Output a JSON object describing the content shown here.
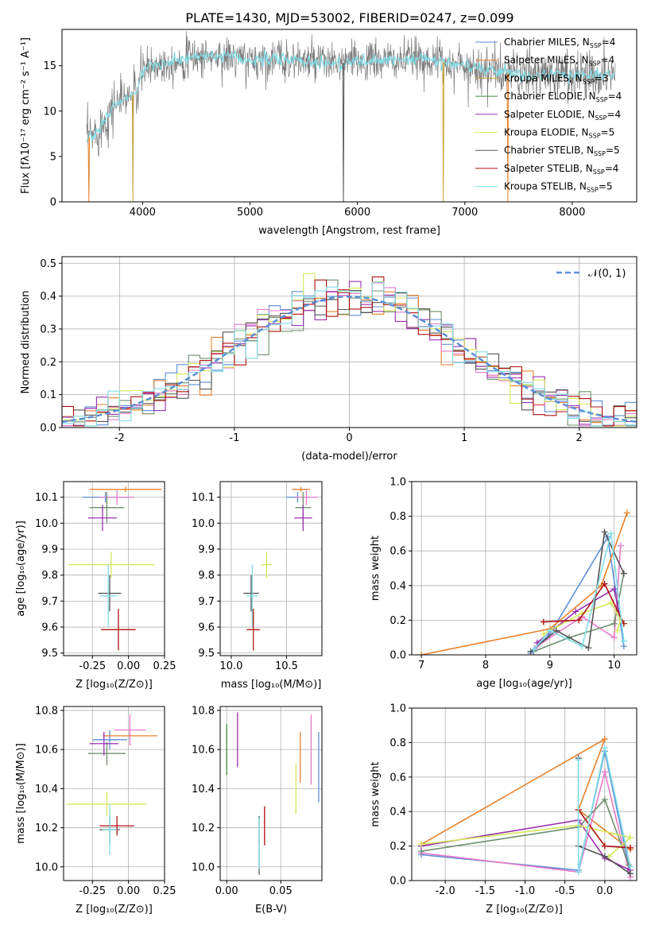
{
  "figure_title": "PLATE=1430, MJD=53002, FIBERID=0247, z=0.099",
  "legend_entries": [
    {
      "label": "Chabrier MILES, N",
      "sub": "SSP",
      "suffix": "=4",
      "color": "#5b8fd6"
    },
    {
      "label": "Salpeter MILES, N",
      "sub": "SSP",
      "suffix": "=4",
      "color": "#e8802b"
    },
    {
      "label": "Kroupa MILES, N",
      "sub": "SSP",
      "suffix": "=3",
      "color": "#c8a23a"
    },
    {
      "label": "Chabrier ELODIE, N",
      "sub": "SSP",
      "suffix": "=4",
      "color": "#3d8a3d"
    },
    {
      "label": "Salpeter ELODIE, N",
      "sub": "SSP",
      "suffix": "=4",
      "color": "#9b30b0"
    },
    {
      "label": "Kroupa ELODIE, N",
      "sub": "SSP",
      "suffix": "=5",
      "color": "#d4e85a"
    },
    {
      "label": "Chabrier STELIB, N",
      "sub": "SSP",
      "suffix": "=5",
      "color": "#555555"
    },
    {
      "label": "Salpeter STELIB, N",
      "sub": "SSP",
      "suffix": "=4",
      "color": "#b01010"
    },
    {
      "label": "Kroupa STELIB, N",
      "sub": "SSP",
      "suffix": "=5",
      "color": "#7fdde8"
    }
  ],
  "colors": [
    "#5b8fd6",
    "#e8802b",
    "#e879c8",
    "#6e8f6e",
    "#9b30b0",
    "#d4e85a",
    "#555555",
    "#b01010",
    "#7fdde8"
  ],
  "chart_data": [
    {
      "id": "spectrum",
      "type": "line",
      "title": "PLATE=1430, MJD=53002, FIBERID=0247, z=0.099",
      "xlabel": "wavelength [Angstrom, rest frame]",
      "ylabel": "Flux [fλ10⁻¹⁷ erg cm⁻² s⁻¹ A⁻¹]",
      "xlim": [
        3250,
        8600
      ],
      "ylim": [
        0,
        19
      ],
      "xticks": [
        4000,
        5000,
        6000,
        7000,
        8000
      ],
      "yticks": [
        0,
        5,
        10,
        15
      ],
      "anchors": [
        [
          3480,
          7.0
        ],
        [
          3560,
          7.5
        ],
        [
          3650,
          9.0
        ],
        [
          3750,
          11.0
        ],
        [
          3850,
          11.5
        ],
        [
          3950,
          12.0
        ],
        [
          4000,
          14.5
        ],
        [
          4100,
          15.0
        ],
        [
          4300,
          15.5
        ],
        [
          4500,
          16.0
        ],
        [
          4800,
          16.0
        ],
        [
          5000,
          15.5
        ],
        [
          5200,
          15.8
        ],
        [
          5500,
          15.5
        ],
        [
          5800,
          15.2
        ],
        [
          6000,
          15.5
        ],
        [
          6300,
          15.5
        ],
        [
          6600,
          15.8
        ],
        [
          7000,
          15.0
        ],
        [
          7500,
          14.0
        ],
        [
          8000,
          14.0
        ],
        [
          8400,
          14.0
        ]
      ],
      "dips": [
        {
          "x": 3500,
          "color": "#e8802b"
        },
        {
          "x": 3910,
          "color": "#c8a23a"
        },
        {
          "x": 6800,
          "color": "#c8a23a"
        },
        {
          "x": 7400,
          "color": "#e8802b"
        },
        {
          "x": 5870,
          "color": "#555555"
        }
      ]
    },
    {
      "id": "residuals",
      "type": "step",
      "xlabel": "(data-model)/error",
      "ylabel": "Normed distribution",
      "xlim": [
        -2.5,
        2.5
      ],
      "ylim": [
        0,
        0.52
      ],
      "xticks": [
        -2,
        -1,
        0,
        1,
        2
      ],
      "yticks": [
        0.0,
        0.1,
        0.2,
        0.3,
        0.4,
        0.5
      ],
      "bin_width": 0.1,
      "gaussian_label": "𝒩(0, 1)",
      "gaussian_color": "#5b8fd6"
    },
    {
      "id": "age_vs_Z",
      "type": "errorbar",
      "xlabel": "Z [log₁₀(Z/Z⊙)]",
      "ylabel": "age  [log₁₀(age/yr)]",
      "xlim": [
        -0.45,
        0.25
      ],
      "ylim": [
        9.49,
        10.16
      ],
      "xticks": [
        -0.25,
        0.0,
        0.25
      ],
      "yticks": [
        9.5,
        9.6,
        9.7,
        9.8,
        9.9,
        10.0,
        10.1
      ],
      "points": [
        {
          "x": -0.16,
          "y": 10.1,
          "xerr": 0.16,
          "yerr": 0.02,
          "color": "#5b8fd6"
        },
        {
          "x": -0.02,
          "y": 10.13,
          "xerr": 0.25,
          "yerr": 0.01,
          "color": "#e8802b"
        },
        {
          "x": -0.08,
          "y": 10.1,
          "xerr": 0.12,
          "yerr": 0.03,
          "color": "#e879c8"
        },
        {
          "x": -0.15,
          "y": 10.06,
          "xerr": 0.12,
          "yerr": 0.06,
          "color": "#6e8f6e"
        },
        {
          "x": -0.18,
          "y": 10.02,
          "xerr": 0.1,
          "yerr": 0.05,
          "color": "#9b30b0"
        },
        {
          "x": -0.12,
          "y": 9.84,
          "xerr": 0.3,
          "yerr": 0.05,
          "color": "#d4e85a"
        },
        {
          "x": -0.13,
          "y": 9.73,
          "xerr": 0.08,
          "yerr": 0.07,
          "color": "#555555"
        },
        {
          "x": -0.07,
          "y": 9.59,
          "xerr": 0.12,
          "yerr": 0.08,
          "color": "#b01010"
        },
        {
          "x": -0.14,
          "y": 9.72,
          "xerr": 0.06,
          "yerr": 0.12,
          "color": "#7fdde8"
        }
      ]
    },
    {
      "id": "age_vs_mass",
      "type": "errorbar",
      "xlabel": "mass [log₁₀(M/M⊙)]",
      "ylabel": "",
      "xlim": [
        9.9,
        10.82
      ],
      "ylim": [
        9.49,
        10.16
      ],
      "xticks": [
        10.0,
        10.5
      ],
      "yticks": [
        9.5,
        9.6,
        9.7,
        9.8,
        9.9,
        10.0,
        10.1
      ],
      "points": [
        {
          "x": 10.6,
          "y": 10.1,
          "xerr": 0.1,
          "yerr": 0.02,
          "color": "#5b8fd6"
        },
        {
          "x": 10.63,
          "y": 10.13,
          "xerr": 0.08,
          "yerr": 0.01,
          "color": "#e8802b"
        },
        {
          "x": 10.68,
          "y": 10.1,
          "xerr": 0.1,
          "yerr": 0.03,
          "color": "#e879c8"
        },
        {
          "x": 10.65,
          "y": 10.06,
          "xerr": 0.07,
          "yerr": 0.06,
          "color": "#6e8f6e"
        },
        {
          "x": 10.65,
          "y": 10.02,
          "xerr": 0.08,
          "yerr": 0.05,
          "color": "#9b30b0"
        },
        {
          "x": 10.32,
          "y": 9.84,
          "xerr": 0.05,
          "yerr": 0.05,
          "color": "#d4e85a"
        },
        {
          "x": 10.18,
          "y": 9.73,
          "xerr": 0.07,
          "yerr": 0.07,
          "color": "#555555"
        },
        {
          "x": 10.2,
          "y": 9.59,
          "xerr": 0.06,
          "yerr": 0.08,
          "color": "#b01010"
        },
        {
          "x": 10.19,
          "y": 9.72,
          "xerr": 0.05,
          "yerr": 0.12,
          "color": "#7fdde8"
        }
      ]
    },
    {
      "id": "weight_vs_age",
      "type": "line",
      "xlabel": "age  [log₁₀(age/yr)]",
      "ylabel": "mass weight",
      "xlim": [
        6.85,
        10.35
      ],
      "ylim": [
        0,
        1
      ],
      "xticks": [
        7,
        8,
        9,
        10
      ],
      "yticks": [
        0.0,
        0.2,
        0.4,
        0.6,
        0.8,
        1.0
      ],
      "series": [
        {
          "color": "#5b8fd6",
          "points": [
            [
              8.7,
              0.01
            ],
            [
              9.0,
              0.12
            ],
            [
              9.9,
              0.68
            ],
            [
              10.15,
              0.05
            ]
          ]
        },
        {
          "color": "#e8802b",
          "points": [
            [
              7.0,
              0.0
            ],
            [
              9.0,
              0.15
            ],
            [
              9.8,
              0.4
            ],
            [
              10.2,
              0.82
            ]
          ]
        },
        {
          "color": "#e879c8",
          "points": [
            [
              8.8,
              0.05
            ],
            [
              9.5,
              0.22
            ],
            [
              10.0,
              0.1
            ],
            [
              10.1,
              0.63
            ]
          ]
        },
        {
          "color": "#6e8f6e",
          "points": [
            [
              8.75,
              0.02
            ],
            [
              9.3,
              0.1
            ],
            [
              10.0,
              0.18
            ],
            [
              10.15,
              0.47
            ]
          ]
        },
        {
          "color": "#9b30b0",
          "points": [
            [
              8.8,
              0.07
            ],
            [
              9.4,
              0.25
            ],
            [
              10.0,
              0.38
            ],
            [
              10.1,
              0.2
            ]
          ]
        },
        {
          "color": "#d4e85a",
          "points": [
            [
              8.9,
              0.12
            ],
            [
              9.5,
              0.24
            ],
            [
              9.95,
              0.3
            ],
            [
              10.1,
              0.2
            ],
            [
              10.05,
              0.14
            ]
          ]
        },
        {
          "color": "#555555",
          "points": [
            [
              8.7,
              0.02
            ],
            [
              9.1,
              0.14
            ],
            [
              9.6,
              0.04
            ],
            [
              9.85,
              0.71
            ],
            [
              10.15,
              0.47
            ]
          ]
        },
        {
          "color": "#b01010",
          "points": [
            [
              8.9,
              0.19
            ],
            [
              9.45,
              0.2
            ],
            [
              9.85,
              0.41
            ],
            [
              10.15,
              0.18
            ]
          ]
        },
        {
          "color": "#7fdde8",
          "points": [
            [
              8.75,
              0.03
            ],
            [
              9.0,
              0.14
            ],
            [
              9.5,
              0.05
            ],
            [
              9.95,
              0.7
            ],
            [
              10.15,
              0.08
            ]
          ]
        }
      ]
    },
    {
      "id": "mass_vs_Z",
      "type": "errorbar",
      "xlabel": "Z [log₁₀(Z/Z⊙)]",
      "ylabel": "mass [log₁₀(M/M⊙)]",
      "xlim": [
        -0.45,
        0.25
      ],
      "ylim": [
        9.93,
        10.82
      ],
      "xticks": [
        -0.25,
        0.0,
        0.25
      ],
      "yticks": [
        10.0,
        10.2,
        10.4,
        10.6,
        10.8
      ],
      "points": [
        {
          "x": -0.13,
          "y": 10.65,
          "xerr": 0.12,
          "yerr": 0.05,
          "color": "#5b8fd6"
        },
        {
          "x": 0.01,
          "y": 10.67,
          "xerr": 0.19,
          "yerr": 0.02,
          "color": "#e8802b"
        },
        {
          "x": 0.01,
          "y": 10.7,
          "xerr": 0.11,
          "yerr": 0.08,
          "color": "#e879c8"
        },
        {
          "x": -0.15,
          "y": 10.58,
          "xerr": 0.13,
          "yerr": 0.06,
          "color": "#6e8f6e"
        },
        {
          "x": -0.17,
          "y": 10.63,
          "xerr": 0.1,
          "yerr": 0.06,
          "color": "#9b30b0"
        },
        {
          "x": -0.15,
          "y": 10.32,
          "xerr": 0.28,
          "yerr": 0.06,
          "color": "#d4e85a"
        },
        {
          "x": -0.13,
          "y": 10.19,
          "xerr": 0.07,
          "yerr": 0.07,
          "color": "#555555"
        },
        {
          "x": -0.08,
          "y": 10.21,
          "xerr": 0.12,
          "yerr": 0.05,
          "color": "#b01010"
        },
        {
          "x": -0.13,
          "y": 10.19,
          "xerr": 0.05,
          "yerr": 0.13,
          "color": "#7fdde8"
        }
      ]
    },
    {
      "id": "mass_vs_ebv",
      "type": "errorbar",
      "xlabel": "E(B-V)",
      "ylabel": "",
      "xlim": [
        -0.006,
        0.088
      ],
      "ylim": [
        9.93,
        10.82
      ],
      "xticks": [
        0.0,
        0.05
      ],
      "yticks": [
        10.0,
        10.2,
        10.4,
        10.6,
        10.8
      ],
      "points": [
        {
          "x": 0.085,
          "y": 10.51,
          "xerr": 0,
          "yerr": 0.18,
          "color": "#5b8fd6"
        },
        {
          "x": 0.068,
          "y": 10.56,
          "xerr": 0,
          "yerr": 0.13,
          "color": "#e8802b"
        },
        {
          "x": 0.078,
          "y": 10.6,
          "xerr": 0,
          "yerr": 0.18,
          "color": "#e879c8"
        },
        {
          "x": 0.0,
          "y": 10.6,
          "xerr": 0,
          "yerr": 0.13,
          "color": "#3d8a3d"
        },
        {
          "x": 0.01,
          "y": 10.65,
          "xerr": 0,
          "yerr": 0.14,
          "color": "#9b30b0"
        },
        {
          "x": 0.064,
          "y": 10.4,
          "xerr": 0,
          "yerr": 0.13,
          "color": "#d4e85a"
        },
        {
          "x": 0.03,
          "y": 10.11,
          "xerr": 0,
          "yerr": 0.15,
          "color": "#555555"
        },
        {
          "x": 0.035,
          "y": 10.21,
          "xerr": 0,
          "yerr": 0.1,
          "color": "#b01010"
        },
        {
          "x": 0.03,
          "y": 10.12,
          "xerr": 0,
          "yerr": 0.13,
          "color": "#7fdde8"
        }
      ]
    },
    {
      "id": "weight_vs_Z",
      "type": "line",
      "xlabel": "Z [log₁₀(Z/Z⊙)]",
      "ylabel": "mass weight",
      "xlim": [
        -2.42,
        0.4
      ],
      "ylim": [
        0,
        1
      ],
      "xticks": [
        -2.0,
        -1.5,
        -1.0,
        -0.5,
        0.0
      ],
      "yticks": [
        0.0,
        0.2,
        0.4,
        0.6,
        0.8,
        1.0
      ],
      "series": [
        {
          "color": "#5b8fd6",
          "points": [
            [
              -2.3,
              0.15
            ],
            [
              -0.33,
              0.06
            ],
            [
              0.0,
              0.75
            ],
            [
              0.32,
              0.04
            ]
          ]
        },
        {
          "color": "#e8802b",
          "points": [
            [
              -2.3,
              0.21
            ],
            [
              0.0,
              0.82
            ],
            [
              -0.33,
              0.41
            ],
            [
              0.32,
              0.18
            ]
          ]
        },
        {
          "color": "#e879c8",
          "points": [
            [
              -2.3,
              0.16
            ],
            [
              -0.33,
              0.05
            ],
            [
              0.0,
              0.63
            ],
            [
              0.32,
              0.02
            ]
          ]
        },
        {
          "color": "#6e8f6e",
          "points": [
            [
              -2.3,
              0.17
            ],
            [
              -0.33,
              0.31
            ],
            [
              0.0,
              0.47
            ],
            [
              0.3,
              0.09
            ]
          ]
        },
        {
          "color": "#9b30b0",
          "points": [
            [
              -2.3,
              0.2
            ],
            [
              -0.33,
              0.35
            ],
            [
              0.0,
              0.13
            ],
            [
              0.32,
              0.06
            ]
          ]
        },
        {
          "color": "#d4e85a",
          "points": [
            [
              -2.3,
              0.21
            ],
            [
              -0.33,
              0.32
            ],
            [
              0.32,
              0.25
            ],
            [
              0.05,
              0.14
            ]
          ]
        },
        {
          "color": "#555555",
          "points": [
            [
              -0.33,
              0.71
            ],
            [
              -0.33,
              0.2
            ],
            [
              0.0,
              0.14
            ],
            [
              0.32,
              0.04
            ]
          ]
        },
        {
          "color": "#b01010",
          "points": [
            [
              -0.33,
              0.41
            ],
            [
              0.0,
              0.2
            ],
            [
              0.32,
              0.19
            ]
          ]
        },
        {
          "color": "#7fdde8",
          "points": [
            [
              -0.33,
              0.7
            ],
            [
              -0.33,
              0.05
            ],
            [
              0.0,
              0.77
            ],
            [
              0.32,
              0.08
            ]
          ]
        }
      ]
    }
  ]
}
